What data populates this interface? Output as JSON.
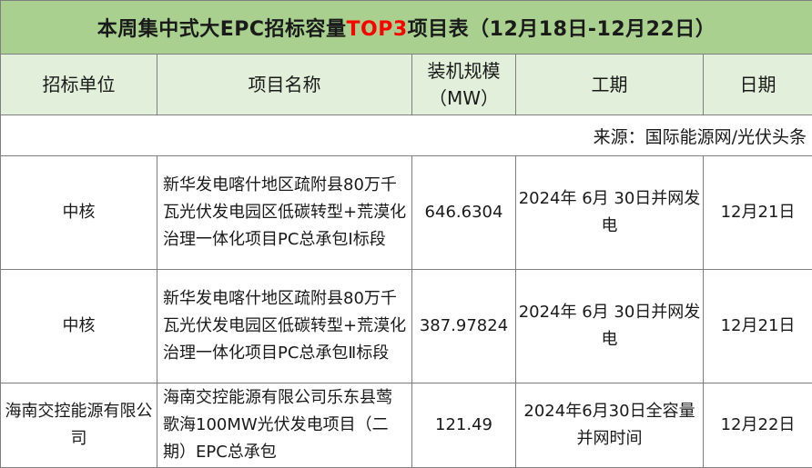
{
  "table": {
    "title_pre": "本周集中式大EPC招标容量",
    "title_highlight": "TOP3",
    "title_post": "项目表（12月18日-12月22日）",
    "headers": [
      "招标单位",
      "项目名称",
      "装机规模（MW）",
      "工期",
      "日期"
    ],
    "source": "来源：国际能源网/光伏头条",
    "rows": [
      {
        "unit": "中核",
        "project": "新华发电喀什地区疏附县80万千瓦光伏发电园区低碳转型+荒漠化治理一体化项目PC总承包Ⅰ标段",
        "capacity": "646.6304",
        "period": "2024年 6月 30日并网发电",
        "date": "12月21日"
      },
      {
        "unit": "中核",
        "project": "新华发电喀什地区疏附县80万千瓦光伏发电园区低碳转型+荒漠化治理一体化项目PC总承包Ⅱ标段",
        "capacity": "387.97824",
        "period": "2024年 6月 30日并网发电",
        "date": "12月21日"
      },
      {
        "unit": "海南交控能源有限公司",
        "project": "海南交控能源有限公司乐东县莺歌海100MW光伏发电项目（二期）EPC总承包",
        "capacity": "121.49",
        "period": "2024年6月30日全容量并网时间",
        "date": "12月22日"
      }
    ]
  }
}
